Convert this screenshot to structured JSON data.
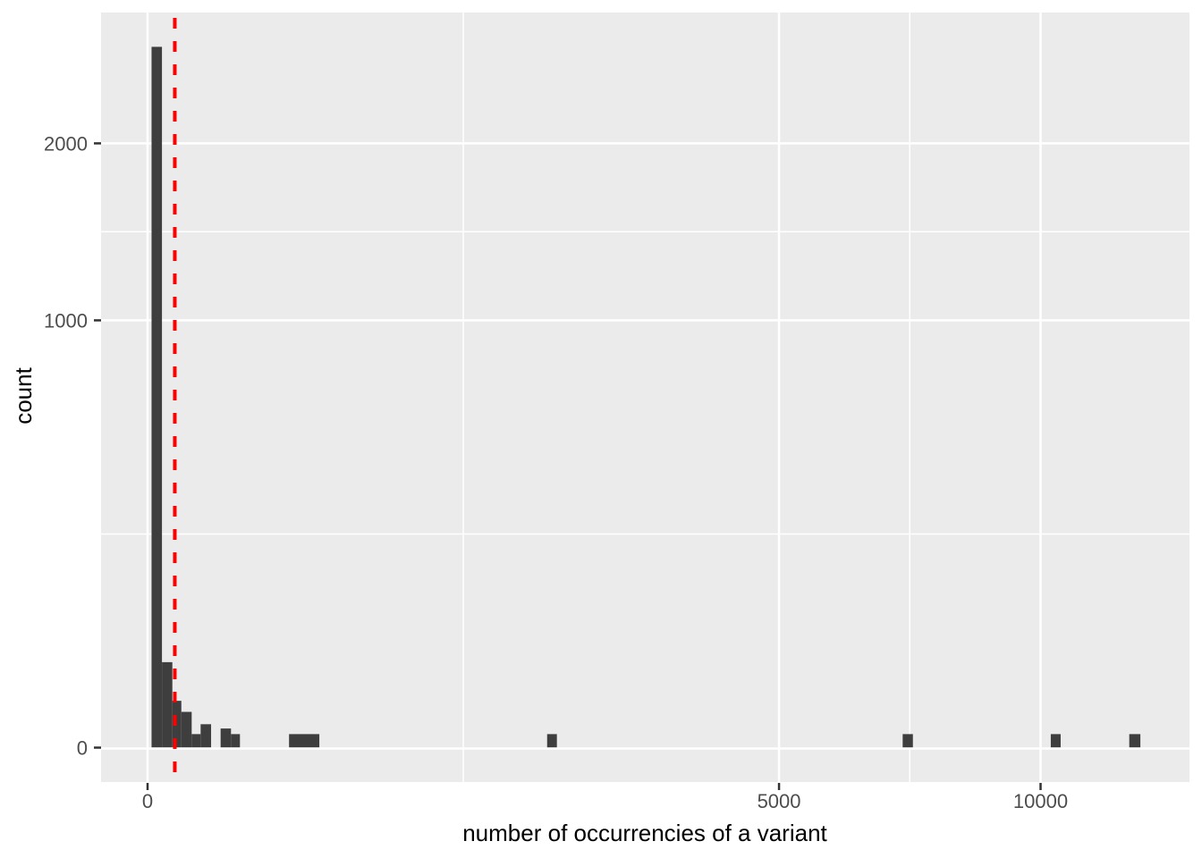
{
  "chart_data": {
    "type": "bar",
    "subtype": "histogram",
    "title": "",
    "xlabel": "number of occurrencies of a variant",
    "ylabel": "count",
    "x_scale": "sqrt",
    "y_scale": "sqrt",
    "xlim": [
      0,
      13600
    ],
    "ylim": [
      0,
      2960
    ],
    "grid": true,
    "legend": false,
    "x_ticks": [
      {
        "value": 0,
        "label": "0"
      },
      {
        "value": 5000,
        "label": "5000"
      },
      {
        "value": 10000,
        "label": "10000"
      }
    ],
    "y_ticks": [
      {
        "value": 0,
        "label": "0"
      },
      {
        "value": 1000,
        "label": "1000"
      },
      {
        "value": 2000,
        "label": "2000"
      }
    ],
    "x_minor_gridlines": [
      1250,
      7285
    ],
    "y_minor_gridlines": [
      250,
      1458
    ],
    "bars": [
      {
        "x0": 0.2,
        "x1": 2.6,
        "count": 2690
      },
      {
        "x0": 2.6,
        "x1": 7.7,
        "count": 40
      },
      {
        "x0": 7.7,
        "x1": 14.3,
        "count": 12
      },
      {
        "x0": 14.3,
        "x1": 24.4,
        "count": 7
      },
      {
        "x0": 24.4,
        "x1": 35.3,
        "count": 1
      },
      {
        "x0": 35.3,
        "x1": 50.6,
        "count": 3
      },
      {
        "x0": 66.9,
        "x1": 87.3,
        "count": 2
      },
      {
        "x0": 87.3,
        "x1": 107,
        "count": 1
      },
      {
        "x0": 251,
        "x1": 370,
        "count": 1
      },
      {
        "x0": 2002,
        "x1": 2101,
        "count": 1
      },
      {
        "x0": 7150,
        "x1": 7345,
        "count": 1
      },
      {
        "x0": 10230,
        "x1": 10455,
        "count": 1
      },
      {
        "x0": 12085,
        "x1": 12360,
        "count": 1
      }
    ],
    "vline": {
      "value": 9.3,
      "style": "dashed"
    },
    "colors": {
      "bar_fill": "#3E3E3E",
      "panel_bg": "#EBEBEB",
      "gridline": "#FFFFFF",
      "tick_mark": "#333333",
      "axis_text": "#4D4D4D",
      "axis_title": "#000000",
      "vline": "#FF0000"
    }
  }
}
